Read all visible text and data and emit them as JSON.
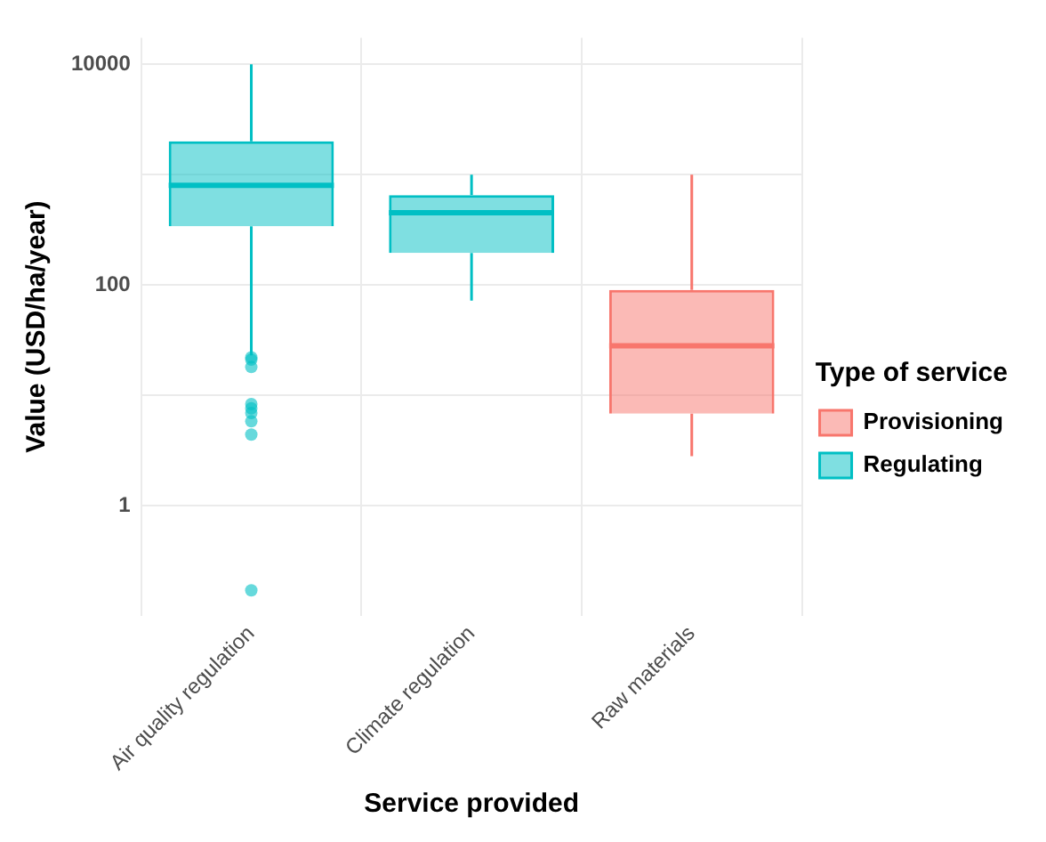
{
  "chart_data": {
    "type": "box",
    "xlabel": "Service provided",
    "ylabel": "Value (USD/ha/year)",
    "legend_title": "Type of service",
    "legend": "right",
    "log": true,
    "grid": true,
    "categories": [
      "Air quality regulation",
      "Climate regulation",
      "Raw materials"
    ],
    "ylim": [
      0.1,
      17400
    ],
    "yticks": [
      1,
      {
        "value": 10,
        "label": null
      },
      100,
      {
        "value": 1000,
        "label": null
      },
      10000
    ],
    "series": [
      {
        "name": "Provisioning",
        "color": "#f8766d",
        "boxes": [
          null,
          null,
          {
            "low": 2.8,
            "q1": 6.8,
            "median": 28,
            "q3": 90,
            "high": 1000
          }
        ]
      },
      {
        "name": "Regulating",
        "color": "#00bfc4",
        "boxes": [
          {
            "low": 23,
            "q1": 340,
            "median": 800,
            "q3": 2000,
            "high": 10000,
            "outliers": [
              22,
              21,
              18,
              8.3,
              7.6,
              6.9,
              5.8,
              4.4,
              0.17
            ]
          },
          {
            "low": 72,
            "q1": 195,
            "median": 450,
            "q3": 650,
            "high": 1000
          },
          null
        ]
      }
    ]
  }
}
